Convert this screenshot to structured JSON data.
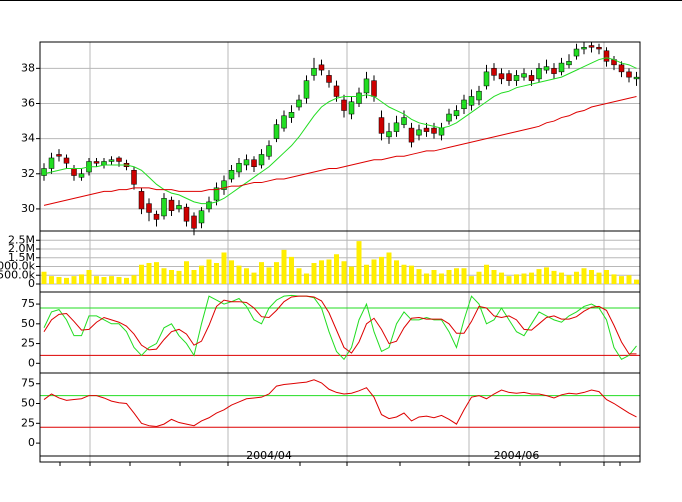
{
  "chart_data": [
    {
      "type": "candlestick",
      "open": [
        31.9,
        32.3,
        33.1,
        32.9,
        32.3,
        31.8,
        32.1,
        32.7,
        32.5,
        32.7,
        32.9,
        32.6,
        32.2,
        31.0,
        30.3,
        29.7,
        29.6,
        30.5,
        30.0,
        30.1,
        29.6,
        29.2,
        30.0,
        30.5,
        31.1,
        31.7,
        32.1,
        32.5,
        32.8,
        32.5,
        33.0,
        34.0,
        34.6,
        35.2,
        35.8,
        36.3,
        37.6,
        38.2,
        37.6,
        37.0,
        36.2,
        35.4,
        36.0,
        36.6,
        37.3,
        35.2,
        34.1,
        34.4,
        34.8,
        34.6,
        34.2,
        34.6,
        34.6,
        34.2,
        35.0,
        35.3,
        35.7,
        35.9,
        36.2,
        37.0,
        38.0,
        37.7,
        37.7,
        37.3,
        37.5,
        37.6,
        37.4,
        37.9,
        38.0,
        37.8,
        38.2,
        38.7,
        39.1,
        39.3,
        39.2,
        39.0,
        38.5,
        38.2,
        37.8,
        37.4
      ],
      "high": [
        32.6,
        33.2,
        33.4,
        33.1,
        32.5,
        32.3,
        32.9,
        32.9,
        32.9,
        33.0,
        33.0,
        32.8,
        32.4,
        31.2,
        30.6,
        29.9,
        30.9,
        30.7,
        30.5,
        30.3,
        29.8,
        30.1,
        30.7,
        31.5,
        31.9,
        32.5,
        32.9,
        33.1,
        33.0,
        33.4,
        33.9,
        35.1,
        35.6,
        35.9,
        36.5,
        37.6,
        38.6,
        38.5,
        37.9,
        37.3,
        36.5,
        36.4,
        36.9,
        37.8,
        37.6,
        35.6,
        34.9,
        35.3,
        35.6,
        34.9,
        34.8,
        34.9,
        34.9,
        34.9,
        35.7,
        35.9,
        36.5,
        36.8,
        37.0,
        38.2,
        38.3,
        38.0,
        37.9,
        37.9,
        38.0,
        37.9,
        38.3,
        38.5,
        38.3,
        38.6,
        38.8,
        39.4,
        39.5,
        39.5,
        39.4,
        39.2,
        38.7,
        38.4,
        38.0,
        37.8
      ],
      "low": [
        31.6,
        32.0,
        32.7,
        32.3,
        31.6,
        31.6,
        31.9,
        32.4,
        32.3,
        32.5,
        32.4,
        32.2,
        31.1,
        29.7,
        29.3,
        29.0,
        29.4,
        29.6,
        29.8,
        29.0,
        28.5,
        28.9,
        29.8,
        30.2,
        30.8,
        31.5,
        31.8,
        32.2,
        32.1,
        32.3,
        32.8,
        33.8,
        34.4,
        34.9,
        35.6,
        36.0,
        37.3,
        37.6,
        36.9,
        36.1,
        35.2,
        35.1,
        35.8,
        36.3,
        36.1,
        33.9,
        33.7,
        34.1,
        34.6,
        33.5,
        33.9,
        34.1,
        34.0,
        33.9,
        34.8,
        35.1,
        35.4,
        35.6,
        35.9,
        36.8,
        37.3,
        37.1,
        37.0,
        37.0,
        37.3,
        37.0,
        37.2,
        37.7,
        37.4,
        37.6,
        38.0,
        38.5,
        38.8,
        38.9,
        38.8,
        38.1,
        37.9,
        37.5,
        37.2,
        37.0
      ],
      "close": [
        32.3,
        32.9,
        33.0,
        32.6,
        31.9,
        32.0,
        32.7,
        32.6,
        32.7,
        32.8,
        32.7,
        32.4,
        31.4,
        30.0,
        29.8,
        29.4,
        30.6,
        29.9,
        30.2,
        29.3,
        28.9,
        29.9,
        30.4,
        31.2,
        31.6,
        32.2,
        32.6,
        32.8,
        32.4,
        33.1,
        33.6,
        34.8,
        35.3,
        35.5,
        36.2,
        37.3,
        38.0,
        37.9,
        37.2,
        36.4,
        35.6,
        36.1,
        36.6,
        37.4,
        36.4,
        34.3,
        34.4,
        34.9,
        35.2,
        33.8,
        34.5,
        34.4,
        34.3,
        34.6,
        35.4,
        35.6,
        36.2,
        36.4,
        36.7,
        37.8,
        37.6,
        37.4,
        37.3,
        37.6,
        37.7,
        37.3,
        38.0,
        38.1,
        37.7,
        38.3,
        38.4,
        39.1,
        39.2,
        39.2,
        39.1,
        38.4,
        38.2,
        37.8,
        37.5,
        37.5
      ],
      "up_color": "#22dd22",
      "down_color": "#cc0000",
      "series": [
        {
          "color": "#22dd22",
          "values": [
            32.0,
            32.1,
            32.2,
            32.3,
            32.3,
            32.3,
            32.4,
            32.4,
            32.5,
            32.5,
            32.5,
            32.5,
            32.4,
            32.2,
            31.8,
            31.4,
            31.1,
            30.9,
            30.8,
            30.6,
            30.4,
            30.3,
            30.3,
            30.4,
            30.6,
            30.9,
            31.2,
            31.5,
            31.8,
            32.1,
            32.4,
            32.8,
            33.2,
            33.6,
            34.1,
            34.7,
            35.3,
            35.8,
            36.1,
            36.3,
            36.4,
            36.4,
            36.4,
            36.5,
            36.4,
            36.1,
            35.8,
            35.6,
            35.4,
            35.1,
            34.9,
            34.8,
            34.7,
            34.6,
            34.7,
            34.9,
            35.2,
            35.5,
            35.8,
            36.1,
            36.4,
            36.6,
            36.7,
            36.9,
            37.0,
            37.1,
            37.2,
            37.3,
            37.4,
            37.5,
            37.7,
            37.9,
            38.1,
            38.3,
            38.5,
            38.6,
            38.5,
            38.3,
            38.2,
            38.0
          ]
        },
        {
          "color": "#dd0000",
          "values": [
            30.2,
            30.3,
            30.4,
            30.5,
            30.6,
            30.7,
            30.8,
            30.9,
            31.0,
            31.0,
            31.1,
            31.1,
            31.2,
            31.2,
            31.2,
            31.1,
            31.1,
            31.1,
            31.0,
            31.0,
            31.0,
            31.0,
            31.1,
            31.1,
            31.2,
            31.3,
            31.3,
            31.4,
            31.5,
            31.5,
            31.6,
            31.7,
            31.7,
            31.8,
            31.9,
            32.0,
            32.1,
            32.2,
            32.3,
            32.3,
            32.4,
            32.5,
            32.6,
            32.7,
            32.8,
            32.8,
            32.9,
            33.0,
            33.0,
            33.1,
            33.2,
            33.3,
            33.3,
            33.4,
            33.5,
            33.6,
            33.7,
            33.8,
            33.9,
            34.0,
            34.1,
            34.2,
            34.3,
            34.4,
            34.5,
            34.6,
            34.7,
            34.9,
            35.0,
            35.2,
            35.3,
            35.5,
            35.6,
            35.8,
            35.9,
            36.0,
            36.1,
            36.2,
            36.3,
            36.4
          ]
        }
      ],
      "ylim": [
        28.8,
        39.5
      ],
      "yticks": [
        30,
        32,
        34,
        36,
        38
      ],
      "grid": true
    },
    {
      "type": "bar",
      "color": "#ffee00",
      "values": [
        700000,
        450000,
        400000,
        350000,
        450000,
        550000,
        800000,
        450000,
        400000,
        450000,
        400000,
        350000,
        500000,
        1100000,
        1200000,
        1250000,
        900000,
        800000,
        750000,
        1300000,
        800000,
        1050000,
        1400000,
        1200000,
        1800000,
        1350000,
        1050000,
        900000,
        650000,
        1250000,
        950000,
        1250000,
        1950000,
        1550000,
        900000,
        600000,
        1200000,
        1350000,
        1400000,
        1700000,
        1300000,
        1000000,
        2450000,
        1100000,
        1400000,
        1550000,
        1800000,
        1350000,
        1100000,
        1050000,
        850000,
        600000,
        800000,
        600000,
        800000,
        900000,
        900000,
        450000,
        700000,
        1100000,
        800000,
        650000,
        450000,
        550000,
        600000,
        650000,
        850000,
        950000,
        750000,
        650000,
        500000,
        700000,
        900000,
        800000,
        650000,
        800000,
        550000,
        450000,
        500000,
        250000
      ],
      "ylim": [
        -400000,
        2800000
      ],
      "yticks": [
        0,
        {
          "value": 500000,
          "label": "500.0k"
        },
        {
          "value": 1000000,
          "label": "1000.0k"
        },
        {
          "value": 1500000,
          "label": "1.5M"
        },
        {
          "value": 2000000,
          "label": "2.0M"
        },
        {
          "value": 2500000,
          "label": "2.5M"
        }
      ],
      "grid": true
    },
    {
      "type": "line",
      "series": [
        {
          "color": "#22dd22",
          "values": [
            45,
            65,
            68,
            55,
            35,
            35,
            60,
            60,
            55,
            50,
            50,
            40,
            20,
            10,
            20,
            25,
            45,
            50,
            35,
            25,
            10,
            50,
            85,
            80,
            75,
            78,
            82,
            72,
            55,
            50,
            70,
            80,
            85,
            86,
            85,
            85,
            83,
            70,
            40,
            15,
            5,
            20,
            55,
            75,
            40,
            15,
            20,
            50,
            65,
            55,
            55,
            58,
            55,
            55,
            40,
            20,
            55,
            85,
            75,
            50,
            55,
            70,
            55,
            40,
            35,
            50,
            65,
            60,
            55,
            52,
            60,
            65,
            72,
            75,
            70,
            55,
            20,
            5,
            10,
            22
          ]
        },
        {
          "color": "#dd0000",
          "values": [
            40,
            55,
            62,
            63,
            53,
            42,
            43,
            52,
            58,
            55,
            52,
            47,
            37,
            23,
            17,
            18,
            30,
            40,
            43,
            37,
            23,
            28,
            48,
            72,
            80,
            78,
            78,
            77,
            70,
            59,
            58,
            67,
            78,
            84,
            85,
            85,
            84,
            79,
            64,
            42,
            20,
            13,
            27,
            50,
            57,
            43,
            25,
            28,
            45,
            57,
            58,
            56,
            56,
            56,
            50,
            38,
            38,
            53,
            72,
            70,
            60,
            58,
            60,
            55,
            43,
            42,
            50,
            58,
            60,
            56,
            56,
            59,
            66,
            71,
            72,
            67,
            48,
            27,
            12,
            12
          ]
        }
      ],
      "hlines": [
        {
          "value": 70,
          "color": "#22dd22"
        },
        {
          "value": 10,
          "color": "#dd0000"
        }
      ],
      "ylim": [
        -11,
        89
      ],
      "yticks": [
        0,
        25,
        50,
        75
      ],
      "grid": false
    },
    {
      "type": "line",
      "series": [
        {
          "color": "#dd0000",
          "values": [
            55,
            62,
            57,
            54,
            55,
            56,
            60,
            60,
            57,
            53,
            51,
            50,
            38,
            25,
            22,
            21,
            24,
            30,
            26,
            24,
            22,
            28,
            32,
            38,
            42,
            48,
            52,
            56,
            57,
            58,
            62,
            72,
            74,
            75,
            76,
            77,
            80,
            76,
            68,
            64,
            62,
            63,
            66,
            70,
            58,
            36,
            31,
            33,
            38,
            28,
            33,
            34,
            32,
            35,
            30,
            24,
            42,
            58,
            60,
            56,
            62,
            67,
            64,
            63,
            64,
            62,
            62,
            60,
            57,
            61,
            63,
            62,
            64,
            67,
            65,
            55,
            50,
            44,
            38,
            33
          ]
        }
      ],
      "hlines": [
        {
          "value": 60,
          "color": "#22dd22"
        },
        {
          "value": 20,
          "color": "#dd0000"
        }
      ],
      "ylim": [
        -15,
        86
      ],
      "yticks": [
        0,
        25,
        50,
        75
      ],
      "grid": false,
      "categories": [
        null,
        null,
        null,
        null,
        null,
        null,
        null,
        null,
        null,
        null,
        null,
        null,
        null,
        null,
        null,
        null,
        null,
        null,
        null,
        null,
        null,
        null,
        null,
        null,
        null,
        null,
        null,
        null,
        null,
        null,
        "2004/04",
        null,
        null,
        null,
        null,
        null,
        null,
        null,
        null,
        null,
        null,
        null,
        null,
        null,
        null,
        null,
        null,
        null,
        null,
        null,
        null,
        null,
        null,
        null,
        null,
        null,
        null,
        null,
        null,
        null,
        null,
        null,
        null,
        "2004/06",
        null,
        null,
        null,
        null,
        null,
        null,
        null,
        null,
        null,
        null,
        null,
        null,
        null,
        null,
        null,
        null
      ]
    }
  ]
}
